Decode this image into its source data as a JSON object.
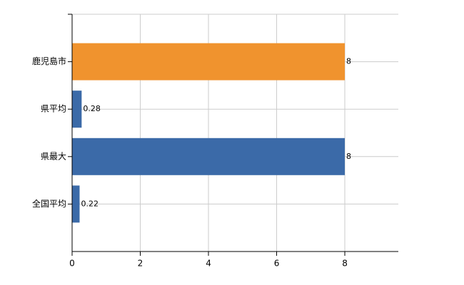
{
  "chart_data": {
    "type": "hbar",
    "categories": [
      "鹿児島市",
      "県平均",
      "県最大",
      "全国平均"
    ],
    "values": [
      8,
      0.28,
      8,
      0.22
    ],
    "colors": [
      "#f0932e",
      "#3b6aa8",
      "#3b6aa8",
      "#3b6aa8"
    ],
    "xlim": [
      0,
      9.57
    ],
    "xticks": [
      0,
      2,
      4,
      6,
      8
    ],
    "grid": true
  }
}
